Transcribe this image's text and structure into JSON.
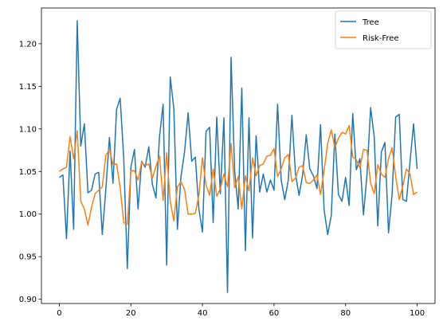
{
  "chart_data": {
    "type": "line",
    "xlim": [
      -5,
      105
    ],
    "ylim": [
      0.895,
      1.242
    ],
    "x_ticks": [
      0,
      20,
      40,
      60,
      80,
      100
    ],
    "y_ticks": [
      0.9,
      0.95,
      1.0,
      1.05,
      1.1,
      1.15,
      1.2
    ],
    "legend_position": "top-right",
    "grid": false,
    "series": [
      {
        "name": "Tree",
        "color": "#1f77b4",
        "values": [
          1.043,
          1.046,
          0.971,
          1.074,
          0.982,
          1.227,
          1.08,
          1.106,
          1.025,
          1.028,
          1.047,
          1.049,
          0.976,
          1.029,
          1.09,
          1.036,
          1.123,
          1.136,
          1.066,
          0.936,
          1.055,
          1.076,
          1.006,
          1.062,
          1.055,
          1.079,
          1.035,
          1.019,
          1.091,
          1.129,
          0.94,
          1.161,
          1.124,
          0.982,
          1.044,
          1.073,
          1.119,
          1.062,
          1.067,
          1.006,
          0.979,
          1.097,
          1.102,
          0.99,
          1.114,
          1.024,
          1.113,
          0.908,
          1.184,
          1.051,
          1.006,
          1.148,
          0.957,
          1.113,
          0.972,
          1.092,
          1.026,
          1.047,
          1.026,
          1.04,
          1.028,
          1.129,
          1.04,
          1.017,
          1.04,
          1.116,
          1.047,
          1.022,
          1.046,
          1.093,
          1.053,
          1.045,
          1.03,
          1.105,
          1.005,
          0.976,
          0.998,
          1.094,
          1.023,
          1.015,
          1.043,
          1.01,
          1.118,
          1.052,
          1.065,
          0.999,
          1.047,
          1.125,
          1.091,
          0.986,
          1.073,
          1.084,
          0.978,
          1.023,
          1.114,
          1.117,
          1.017,
          1.015,
          1.061,
          1.106,
          1.053
        ]
      },
      {
        "name": "Risk-Free",
        "color": "#ff7f0e",
        "values": [
          1.05,
          1.053,
          1.055,
          1.091,
          1.065,
          1.098,
          1.015,
          1.006,
          0.987,
          1.008,
          1.024,
          1.028,
          1.032,
          1.069,
          1.076,
          1.058,
          1.059,
          1.031,
          0.99,
          0.988,
          1.051,
          1.051,
          1.04,
          1.061,
          1.057,
          1.059,
          1.042,
          1.056,
          1.068,
          1.016,
          1.072,
          1.015,
          0.992,
          1.032,
          1.038,
          1.029,
          1.0,
          1.0,
          1.001,
          1.022,
          1.066,
          1.034,
          1.022,
          1.053,
          1.021,
          1.03,
          1.047,
          1.032,
          1.083,
          1.031,
          1.044,
          1.006,
          1.045,
          1.027,
          1.066,
          1.045,
          1.057,
          1.059,
          1.068,
          1.069,
          1.077,
          1.044,
          1.053,
          1.066,
          1.07,
          1.038,
          1.042,
          1.055,
          1.057,
          1.037,
          1.036,
          1.04,
          1.046,
          1.023,
          1.051,
          1.083,
          1.099,
          1.078,
          1.089,
          1.096,
          1.094,
          1.104,
          1.067,
          1.064,
          1.054,
          1.076,
          1.075,
          1.036,
          1.024,
          1.058,
          1.047,
          1.043,
          1.065,
          1.078,
          1.044,
          1.017,
          1.033,
          1.053,
          1.047,
          1.023,
          1.026
        ]
      }
    ]
  }
}
